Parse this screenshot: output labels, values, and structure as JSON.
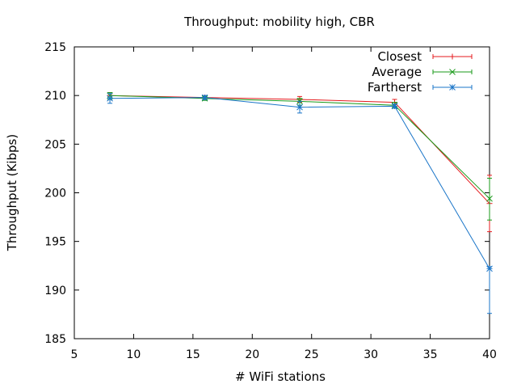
{
  "chart_data": {
    "type": "line",
    "title": "Throughput: mobility high, CBR",
    "xlabel": "# WiFi stations",
    "ylabel": "Throughput (Kibps)",
    "xlim": [
      5,
      40
    ],
    "ylim": [
      185,
      215
    ],
    "xticks": [
      "5",
      "10",
      "15",
      "20",
      "25",
      "30",
      "35",
      "40"
    ],
    "yticks": [
      "185",
      "190",
      "195",
      "200",
      "205",
      "210",
      "215"
    ],
    "grid": false,
    "legend_position": "top-right",
    "x": [
      8,
      16,
      24,
      32,
      40
    ],
    "series": [
      {
        "name": "Closest",
        "color": "#e41a1c",
        "marker": "plus",
        "values": [
          210.0,
          209.8,
          209.6,
          209.3,
          198.9
        ],
        "err_low": [
          209.6,
          209.6,
          209.3,
          208.9,
          196.0
        ],
        "err_high": [
          210.3,
          210.0,
          209.9,
          209.6,
          201.8
        ]
      },
      {
        "name": "Average",
        "color": "#1a9a1a",
        "marker": "cross",
        "values": [
          210.0,
          209.7,
          209.4,
          209.0,
          199.4
        ],
        "err_low": [
          209.6,
          209.5,
          209.0,
          208.7,
          197.2
        ],
        "err_high": [
          210.3,
          209.9,
          209.7,
          209.3,
          201.5
        ]
      },
      {
        "name": "Fartherst",
        "color": "#1a75c8",
        "marker": "star",
        "values": [
          209.7,
          209.8,
          208.8,
          208.9,
          192.2
        ],
        "err_low": [
          209.2,
          209.6,
          208.2,
          208.7,
          187.6
        ],
        "err_high": [
          210.2,
          210.0,
          209.4,
          209.1,
          192.4
        ]
      }
    ]
  }
}
